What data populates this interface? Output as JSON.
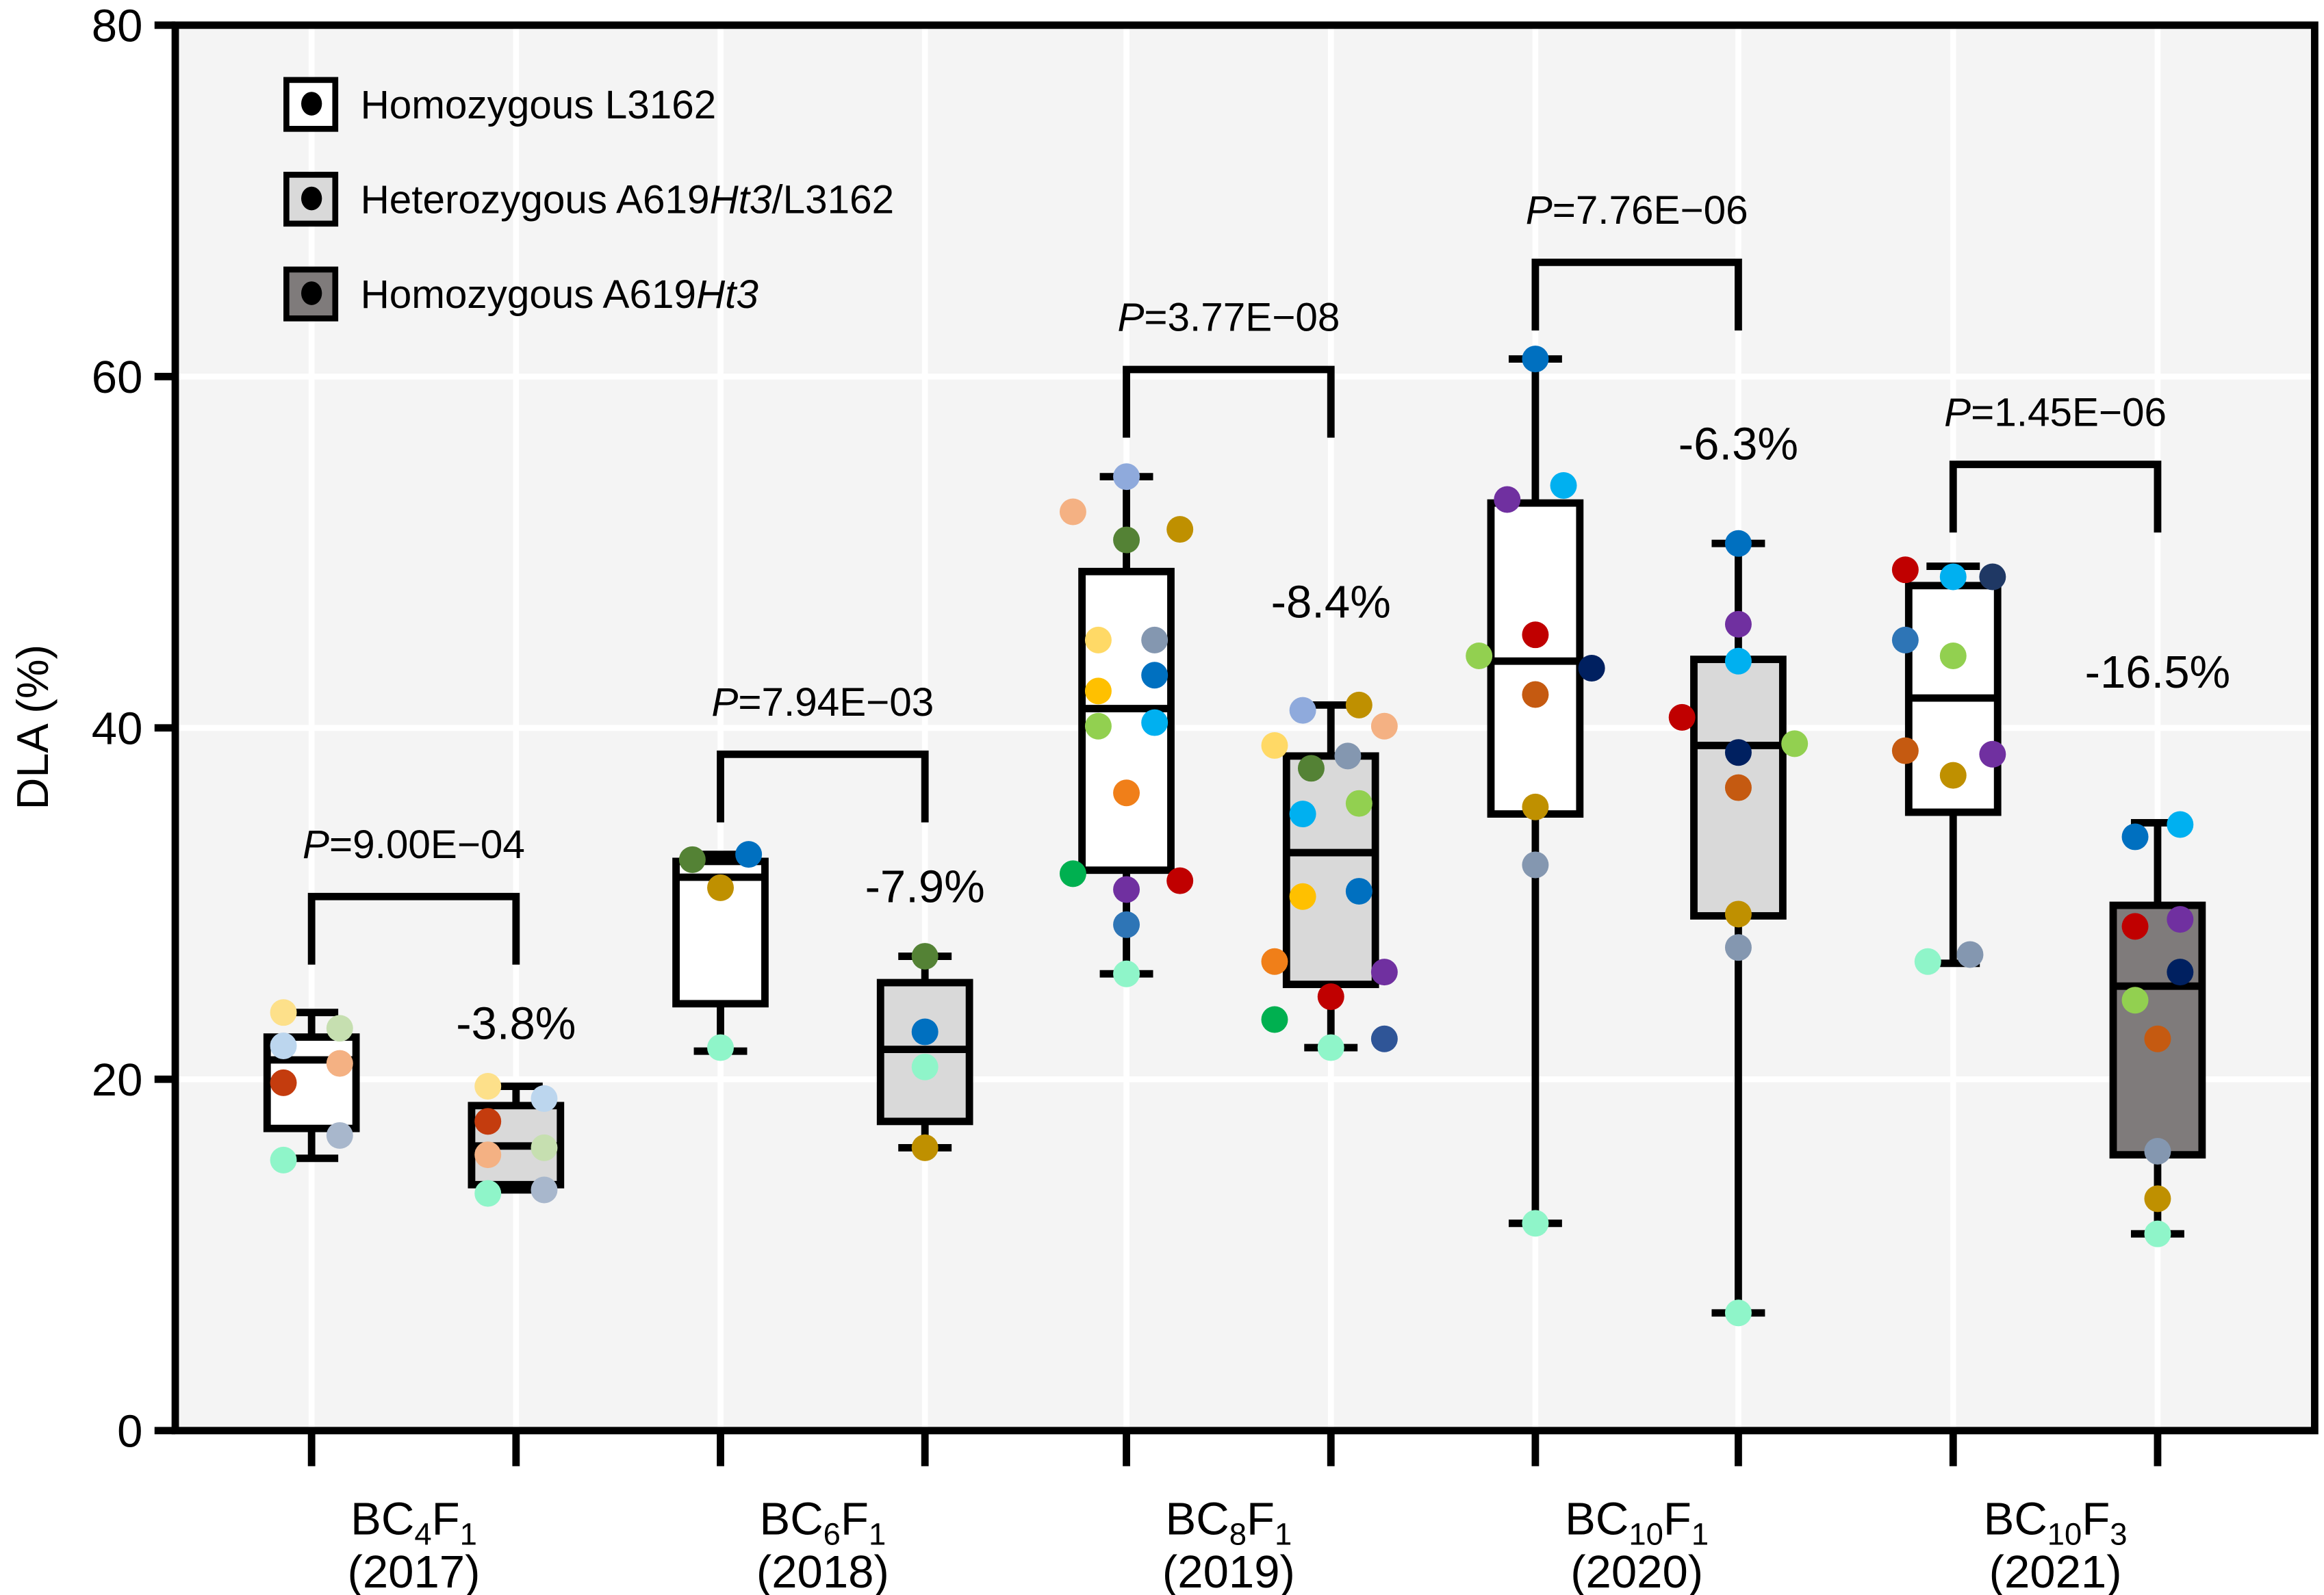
{
  "chart_data": {
    "type": "box",
    "ylabel": "DLA (%)",
    "ylim": [
      0,
      80
    ],
    "yticks": [
      "0",
      "20",
      "40",
      "60",
      "80"
    ],
    "grid": true,
    "legend_position": "top-left",
    "legend": [
      {
        "parts": [
          [
            "Homozygous L3162",
            false
          ]
        ],
        "fill": "#ffffff"
      },
      {
        "parts": [
          [
            "Heterozygous A619",
            false
          ],
          [
            "Ht3",
            true
          ],
          [
            "/L3162",
            false
          ]
        ],
        "fill": "#d9d9d9"
      },
      {
        "parts": [
          [
            "Homozygous A619",
            false
          ],
          [
            "Ht3",
            true
          ]
        ],
        "fill": "#7f7b7b"
      }
    ],
    "groups": [
      {
        "label_main": "BC",
        "label_sub1": "4",
        "label_mid": "F",
        "label_sub2": "1",
        "year": "(2017)",
        "p_prefix": "P",
        "p_value": "=9.00E−04",
        "bracket_y": 30.4,
        "change": "-3.8%",
        "change_y": 23.3,
        "boxes": [
          {
            "genotype": "Homozygous L3162",
            "fill": "#ffffff",
            "min": 15.5,
            "q1": 17.2,
            "median": 21.1,
            "q3": 22.4,
            "max": 23.8,
            "points": [
              [
                -1,
                23.8,
                "#fde08a"
              ],
              [
                -1,
                21.9,
                "#bcd6ee"
              ],
              [
                1,
                22.9,
                "#c6dfb0"
              ],
              [
                1,
                20.9,
                "#f4b183"
              ],
              [
                -1,
                19.8,
                "#c43c0e"
              ],
              [
                1,
                16.8,
                "#a8b7cc"
              ],
              [
                -1,
                15.4,
                "#8ff5c9"
              ]
            ]
          },
          {
            "genotype": "Heterozygous A619Ht3/L3162",
            "fill": "#d9d9d9",
            "min": 13.7,
            "q1": 14.0,
            "median": 16.2,
            "q3": 18.5,
            "max": 19.6,
            "points": [
              [
                -1,
                19.6,
                "#fde08a"
              ],
              [
                1,
                18.9,
                "#bcd6ee"
              ],
              [
                -1,
                17.6,
                "#c43c0e"
              ],
              [
                1,
                16.1,
                "#c6dfb0"
              ],
              [
                -1,
                15.7,
                "#f4b183"
              ],
              [
                -1,
                13.5,
                "#8ff5c9"
              ],
              [
                1,
                13.7,
                "#a8b7cc"
              ]
            ]
          }
        ]
      },
      {
        "label_main": "BC",
        "label_sub1": "6",
        "label_mid": "F",
        "label_sub2": "1",
        "year": "(2018)",
        "p_prefix": "P",
        "p_value": "=7.94E−03",
        "bracket_y": 38.5,
        "change": "-7.9%",
        "change_y": 31.1,
        "boxes": [
          {
            "genotype": "Homozygous L3162",
            "fill": "#ffffff",
            "min": 21.6,
            "q1": 24.3,
            "median": 31.5,
            "q3": 32.4,
            "max": 32.8,
            "points": [
              [
                -1,
                32.5,
                "#548235"
              ],
              [
                1,
                32.8,
                "#0070c0"
              ],
              [
                0,
                30.9,
                "#bf9000"
              ],
              [
                0,
                21.8,
                "#8ff5c9"
              ]
            ]
          },
          {
            "genotype": "Heterozygous A619Ht3/L3162",
            "fill": "#d9d9d9",
            "min": 16.1,
            "q1": 17.6,
            "median": 21.7,
            "q3": 25.5,
            "max": 27.0,
            "points": [
              [
                0,
                27.0,
                "#548235"
              ],
              [
                0,
                22.7,
                "#0070c0"
              ],
              [
                0,
                20.7,
                "#8ff5c9"
              ],
              [
                0,
                16.1,
                "#bf9000"
              ]
            ]
          }
        ]
      },
      {
        "label_main": "BC",
        "label_sub1": "8",
        "label_mid": "F",
        "label_sub2": "1",
        "year": "(2019)",
        "p_prefix": "P",
        "p_value": "=3.77E−08",
        "bracket_y": 60.4,
        "change": "-8.4%",
        "change_y": 47.3,
        "boxes": [
          {
            "genotype": "Homozygous L3162",
            "fill": "#ffffff",
            "min": 26.0,
            "q1": 31.9,
            "median": 41.1,
            "q3": 48.9,
            "max": 54.3,
            "points": [
              [
                0,
                54.3,
                "#8faadc"
              ],
              [
                -1.9,
                52.3,
                "#f4b183"
              ],
              [
                0,
                50.7,
                "#548235"
              ],
              [
                1.9,
                51.3,
                "#bf9000"
              ],
              [
                -1,
                45.0,
                "#ffd966"
              ],
              [
                1,
                45.0,
                "#8497b0"
              ],
              [
                1,
                43.0,
                "#0070c0"
              ],
              [
                -1,
                42.1,
                "#ffc000"
              ],
              [
                1,
                40.3,
                "#00b0f0"
              ],
              [
                -1,
                40.1,
                "#92d050"
              ],
              [
                0,
                36.3,
                "#f07f19"
              ],
              [
                -1.9,
                31.7,
                "#00b050"
              ],
              [
                1.9,
                31.3,
                "#c00000"
              ],
              [
                0,
                30.8,
                "#7030a0"
              ],
              [
                0,
                28.8,
                "#2e75b6"
              ],
              [
                0,
                26.0,
                "#8ff5c9"
              ]
            ]
          },
          {
            "genotype": "Heterozygous A619Ht3/L3162",
            "fill": "#d9d9d9",
            "min": 21.8,
            "q1": 25.4,
            "median": 32.9,
            "q3": 38.4,
            "max": 41.3,
            "points": [
              [
                -2,
                39.0,
                "#ffd966"
              ],
              [
                -1,
                41.0,
                "#8faadc"
              ],
              [
                1,
                41.3,
                "#bf9000"
              ],
              [
                1.9,
                40.1,
                "#f4b183"
              ],
              [
                -0.7,
                37.7,
                "#548235"
              ],
              [
                0.6,
                38.4,
                "#8497b0"
              ],
              [
                -1,
                35.1,
                "#00b0f0"
              ],
              [
                1,
                35.7,
                "#92d050"
              ],
              [
                -1,
                30.4,
                "#ffc000"
              ],
              [
                1,
                30.7,
                "#0070c0"
              ],
              [
                -2,
                26.7,
                "#f07f19"
              ],
              [
                1.9,
                26.1,
                "#7030a0"
              ],
              [
                0,
                24.7,
                "#c00000"
              ],
              [
                -2,
                23.4,
                "#00b050"
              ],
              [
                0,
                21.8,
                "#8ff5c9"
              ],
              [
                1.9,
                22.3,
                "#2f5597"
              ]
            ]
          }
        ]
      },
      {
        "label_main": "BC",
        "label_sub1": "10",
        "label_mid": "F",
        "label_sub2": "1",
        "year": "(2020)",
        "p_prefix": "P",
        "p_value": "=7.76E−06",
        "bracket_y": 66.5,
        "change": "-6.3%",
        "change_y": 56.3,
        "boxes": [
          {
            "genotype": "Homozygous L3162",
            "fill": "#ffffff",
            "min": 11.8,
            "q1": 35.1,
            "median": 43.8,
            "q3": 52.8,
            "max": 61.0,
            "points": [
              [
                0,
                61.0,
                "#0070c0"
              ],
              [
                -1,
                53.0,
                "#7030a0"
              ],
              [
                1,
                53.8,
                "#00b0f0"
              ],
              [
                0,
                45.3,
                "#c00000"
              ],
              [
                -2,
                44.1,
                "#92d050"
              ],
              [
                2,
                43.4,
                "#002060"
              ],
              [
                0,
                41.9,
                "#c55a11"
              ],
              [
                0,
                35.5,
                "#bf9000"
              ],
              [
                0,
                32.2,
                "#8497b0"
              ],
              [
                0,
                11.8,
                "#8ff5c9"
              ]
            ]
          },
          {
            "genotype": "Heterozygous A619Ht3/L3162",
            "fill": "#d9d9d9",
            "min": 6.7,
            "q1": 29.3,
            "median": 39.0,
            "q3": 43.9,
            "max": 50.5,
            "points": [
              [
                0,
                50.5,
                "#0070c0"
              ],
              [
                0,
                45.9,
                "#7030a0"
              ],
              [
                0,
                43.8,
                "#00b0f0"
              ],
              [
                -2,
                40.6,
                "#c00000"
              ],
              [
                0,
                38.6,
                "#002060"
              ],
              [
                2,
                39.1,
                "#92d050"
              ],
              [
                0,
                36.6,
                "#c55a11"
              ],
              [
                0,
                29.4,
                "#bf9000"
              ],
              [
                0,
                27.5,
                "#8497b0"
              ],
              [
                0,
                6.7,
                "#8ff5c9"
              ]
            ]
          }
        ]
      },
      {
        "label_main": "BC",
        "label_sub1": "10",
        "label_mid": "F",
        "label_sub2": "3",
        "year": "(2021)",
        "p_prefix": "P",
        "p_value": "=1.45E−06",
        "bracket_y": 55.0,
        "change": "-16.5%",
        "change_y": 43.3,
        "boxes": [
          {
            "genotype": "Homozygous L3162",
            "fill": "#ffffff",
            "min": 26.6,
            "q1": 35.2,
            "median": 41.7,
            "q3": 48.1,
            "max": 49.2,
            "points": [
              [
                -1.7,
                49.0,
                "#c00000"
              ],
              [
                0,
                48.6,
                "#00b0f0"
              ],
              [
                1.4,
                48.6,
                "#1f3864"
              ],
              [
                -1.7,
                45.0,
                "#2e75b6"
              ],
              [
                0,
                44.1,
                "#92d050"
              ],
              [
                -1.7,
                38.7,
                "#c55a11"
              ],
              [
                0,
                37.3,
                "#bf9000"
              ],
              [
                1.4,
                38.5,
                "#7030a0"
              ],
              [
                -0.9,
                26.7,
                "#8ff5c9"
              ],
              [
                0.6,
                27.1,
                "#8497b0"
              ]
            ]
          },
          {
            "genotype": "Homozygous A619Ht3",
            "fill": "#7f7b7b",
            "min": 11.2,
            "q1": 15.7,
            "median": 25.3,
            "q3": 29.9,
            "max": 34.6,
            "points": [
              [
                -0.8,
                33.8,
                "#0070c0"
              ],
              [
                0.8,
                34.5,
                "#00b0f0"
              ],
              [
                -0.8,
                28.7,
                "#c00000"
              ],
              [
                0.8,
                29.1,
                "#7030a0"
              ],
              [
                0.8,
                26.1,
                "#002060"
              ],
              [
                -0.8,
                24.5,
                "#92d050"
              ],
              [
                0,
                22.3,
                "#c55a11"
              ],
              [
                0,
                15.9,
                "#8497b0"
              ],
              [
                0,
                13.2,
                "#bf9000"
              ],
              [
                0,
                11.2,
                "#8ff5c9"
              ]
            ]
          }
        ]
      }
    ]
  }
}
